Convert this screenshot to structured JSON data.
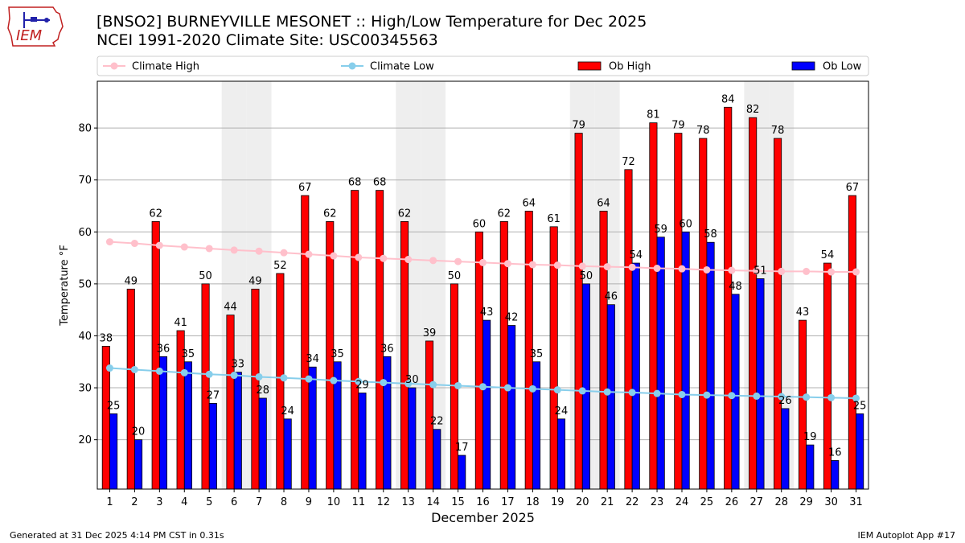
{
  "header": {
    "title_line1": "[BNSO2] BURNEYVILLE MESONET :: High/Low Temperature for Dec 2025",
    "title_line2": "NCEI 1991-2020 Climate Site: USC00345563",
    "logo_text": "IEM"
  },
  "footer": {
    "generated": "Generated at 31 Dec 2025 4:14 PM CST in 0.31s",
    "app": "IEM Autoplot App #17"
  },
  "colors": {
    "ob_high": "#ff0000",
    "ob_low": "#0000ff",
    "climate_high": "#ffc0cb",
    "climate_low": "#87ceeb",
    "weekend_shade": "#eeeeee",
    "grid": "#b0b0b0"
  },
  "chart_data": {
    "type": "bar",
    "xlabel": "December 2025",
    "ylabel": "Temperature °F",
    "ylim": [
      10.5,
      89
    ],
    "yticks": [
      20,
      30,
      40,
      50,
      60,
      70,
      80
    ],
    "grid": "horizontal",
    "legend_position": "top",
    "categories": [
      "1",
      "2",
      "3",
      "4",
      "5",
      "6",
      "7",
      "8",
      "9",
      "10",
      "11",
      "12",
      "13",
      "14",
      "15",
      "16",
      "17",
      "18",
      "19",
      "20",
      "21",
      "22",
      "23",
      "24",
      "25",
      "26",
      "27",
      "28",
      "29",
      "30",
      "31"
    ],
    "shaded_days": [
      6,
      7,
      13,
      14,
      20,
      21,
      27,
      28
    ],
    "series": [
      {
        "name": "Ob High",
        "kind": "bar",
        "values": [
          38,
          49,
          62,
          41,
          50,
          44,
          49,
          52,
          67,
          62,
          68,
          68,
          62,
          39,
          50,
          60,
          62,
          64,
          61,
          79,
          64,
          72,
          81,
          79,
          78,
          84,
          82,
          78,
          43,
          54,
          67
        ],
        "labels": [
          "38",
          "49",
          "62",
          "41",
          "50",
          "44",
          "49",
          "52",
          "67",
          "62",
          "68",
          "68",
          "62",
          "39",
          "50",
          "60",
          "62",
          "64",
          "61",
          "79",
          "64",
          "72",
          "81",
          "79",
          "78",
          "84",
          "82",
          "78",
          "43",
          "54",
          "67"
        ]
      },
      {
        "name": "Ob Low",
        "kind": "bar",
        "values": [
          25,
          20,
          36,
          35,
          27,
          33,
          28,
          24,
          34,
          35,
          29,
          36,
          30,
          22,
          17,
          43,
          42,
          35,
          24,
          50,
          46,
          54,
          59,
          60,
          58,
          48,
          51,
          26,
          19,
          16,
          25
        ],
        "labels": [
          "25",
          "20",
          "36",
          "35",
          "27",
          "33",
          "28",
          "24",
          "34",
          "35",
          "29",
          "36",
          "30",
          "22",
          "17",
          "43",
          "42",
          "35",
          "24",
          "50",
          "46",
          "54",
          "59",
          "60",
          "58",
          "48",
          "51",
          "26",
          "19",
          "16",
          "25"
        ]
      },
      {
        "name": "Climate High",
        "kind": "line",
        "values": [
          58.1,
          57.8,
          57.4,
          57.1,
          56.8,
          56.5,
          56.3,
          56.0,
          55.7,
          55.4,
          55.1,
          54.9,
          54.7,
          54.5,
          54.3,
          54.1,
          53.9,
          53.7,
          53.6,
          53.4,
          53.3,
          53.2,
          53.0,
          52.9,
          52.7,
          52.6,
          52.5,
          52.4,
          52.4,
          52.3,
          52.3
        ]
      },
      {
        "name": "Climate Low",
        "kind": "line",
        "values": [
          33.8,
          33.5,
          33.2,
          32.9,
          32.6,
          32.4,
          32.1,
          31.9,
          31.7,
          31.4,
          31.2,
          31.0,
          30.8,
          30.6,
          30.4,
          30.2,
          30.0,
          29.8,
          29.6,
          29.4,
          29.2,
          29.1,
          28.9,
          28.7,
          28.6,
          28.5,
          28.4,
          28.3,
          28.2,
          28.1,
          28.0
        ]
      }
    ]
  }
}
